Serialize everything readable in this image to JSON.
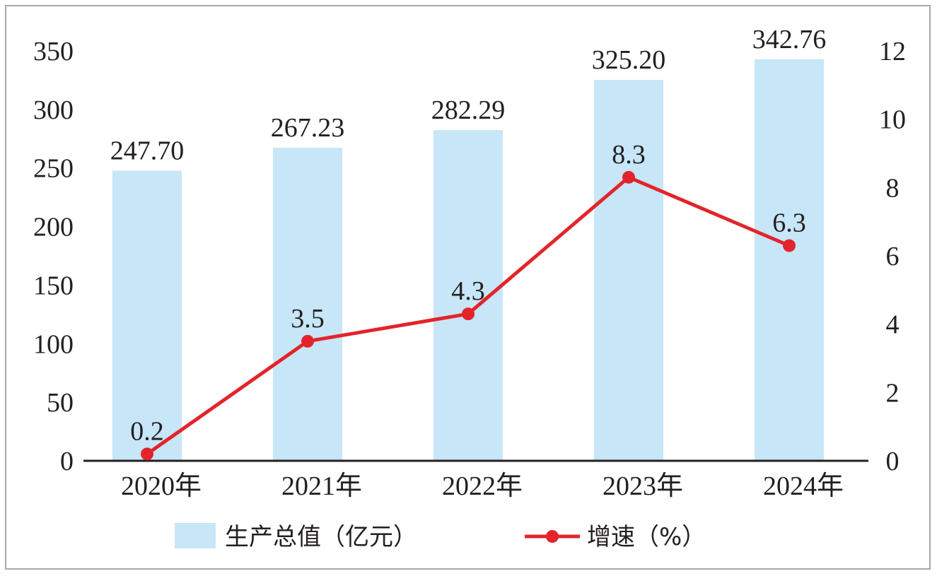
{
  "chart_data": {
    "type": "bar",
    "categories": [
      "2020年",
      "2021年",
      "2022年",
      "2023年",
      "2024年"
    ],
    "series": [
      {
        "name": "生产总值（亿元）",
        "type": "bar",
        "axis": "left",
        "values": [
          247.7,
          267.23,
          282.29,
          325.2,
          342.76
        ],
        "labels": [
          "247.70",
          "267.23",
          "282.29",
          "325.20",
          "342.76"
        ],
        "color": "#c7e6f7"
      },
      {
        "name": "增速（%）",
        "type": "line",
        "axis": "right",
        "values": [
          0.2,
          3.5,
          4.3,
          8.3,
          6.3
        ],
        "labels": [
          "0.2",
          "3.5",
          "4.3",
          "8.3",
          "6.3"
        ],
        "color": "#e3242b"
      }
    ],
    "y_left": {
      "ticks": [
        "0",
        "50",
        "100",
        "150",
        "200",
        "250",
        "300",
        "350"
      ],
      "ylim": [
        0,
        350
      ]
    },
    "y_right": {
      "ticks": [
        "0",
        "2",
        "4",
        "6",
        "8",
        "10",
        "12"
      ],
      "ylim": [
        0,
        12
      ]
    },
    "grid": false,
    "legend_position": "bottom"
  }
}
